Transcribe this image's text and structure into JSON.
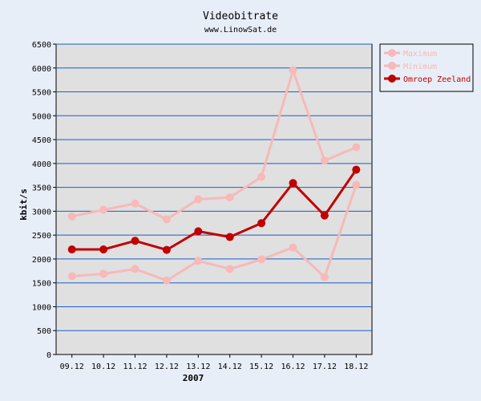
{
  "chart_data": {
    "type": "line",
    "title": "Videobitrate",
    "subtitle": "www.LinowSat.de",
    "xlabel": "2007",
    "ylabel": "kbit/s",
    "ylim": [
      0,
      6500
    ],
    "yticks": [
      0,
      500,
      1000,
      1500,
      2000,
      2500,
      3000,
      3500,
      4000,
      4500,
      5000,
      5500,
      6000,
      6500
    ],
    "categories": [
      "09.12",
      "10.12",
      "11.12",
      "12.12",
      "13.12",
      "14.12",
      "15.12",
      "16.12",
      "17.12",
      "18.12"
    ],
    "grid": true,
    "legend_position": "top-right",
    "series": [
      {
        "name": "Maximum",
        "color": "#f7b9b9",
        "values": [
          2890,
          3030,
          3160,
          2830,
          3250,
          3290,
          3720,
          5950,
          4060,
          4340
        ]
      },
      {
        "name": "Minimum",
        "color": "#f7b9b9",
        "values": [
          1640,
          1690,
          1790,
          1550,
          1960,
          1790,
          1990,
          2240,
          1620,
          3550
        ]
      },
      {
        "name": "Omroep Zeeland",
        "color": "#c00000",
        "values": [
          2200,
          2200,
          2380,
          2190,
          2580,
          2460,
          2750,
          3590,
          2910,
          3870
        ]
      }
    ]
  },
  "colors": {
    "page_background": "#e8eef7",
    "plot_background": "#e0e0e0",
    "gridline": "#1a5ec8"
  }
}
